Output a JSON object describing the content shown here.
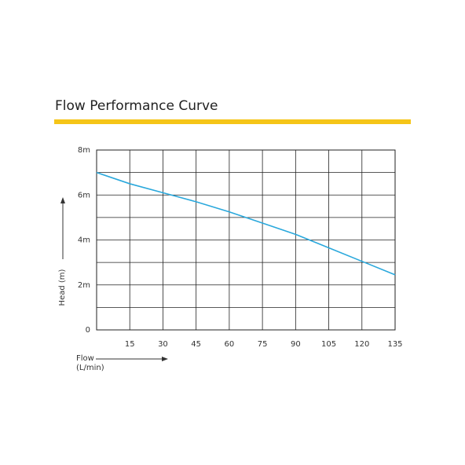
{
  "chart_data": {
    "type": "line",
    "title": "Flow Performance Curve",
    "xlabel": "Flow",
    "xlabel_unit": "(L/min)",
    "ylabel": "Head (m)",
    "x": [
      0,
      15,
      30,
      45,
      60,
      75,
      90,
      105,
      120,
      135
    ],
    "series": [
      {
        "name": "Head",
        "color": "#2aa8dc",
        "values": [
          7.0,
          6.5,
          6.1,
          5.7,
          5.25,
          4.75,
          4.25,
          3.65,
          3.05,
          2.45
        ]
      }
    ],
    "xlim": [
      0,
      135
    ],
    "xticks": [
      15,
      30,
      45,
      60,
      75,
      90,
      105,
      120,
      135
    ],
    "ylim": [
      0,
      8
    ],
    "yticks": [
      {
        "value": 8,
        "label": "8m"
      },
      {
        "value": 6,
        "label": "6m"
      },
      {
        "value": 4,
        "label": "4m"
      },
      {
        "value": 2,
        "label": "2m"
      },
      0
    ],
    "ygrid": [
      1,
      2,
      3,
      4,
      5,
      6,
      7,
      8
    ],
    "grid": true,
    "accent_color": "#f5c518",
    "grid_color": "#222"
  }
}
